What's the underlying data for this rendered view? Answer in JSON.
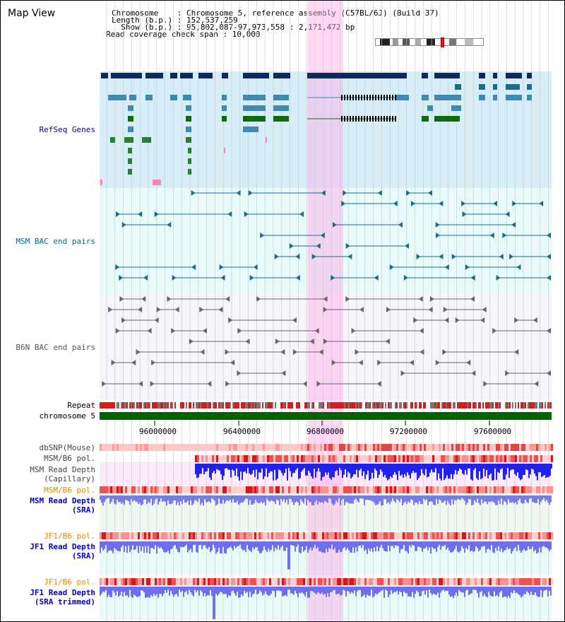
{
  "panel_title": "Map View",
  "header": {
    "chromosome_line": "Chromosome    : Chromosome 5, reference assembly (C57BL/6J) (Build 37)",
    "length_line": "Length (b.p.) : 152,537,259",
    "show_line": "  Show (b.p.) : 95,802,087-97,973,558 : 2,171,472 bp",
    "span_line": "Read coverage check span : 10,000"
  },
  "tracks": {
    "refseq": "RefSeq Genes",
    "msm_bac": "MSM BAC end pairs",
    "b6n_bac": "B6N BAC end pairs",
    "repeat": "Repeat",
    "chromosome": "chromosome 5",
    "dbsnp": "dbSNP(Mouse)",
    "msm_pol1": "MSM/B6 pol.",
    "msm_depth_cap": "MSM Read Depth\n(Capillary)",
    "msm_pol2": "MSM/B6 pol.",
    "msm_depth_sra": "MSM Read Depth\n(SRA)",
    "jf1_pol1": "JF1/B6 pol.",
    "jf1_depth_sra": "JF1 Read Depth\n(SRA)",
    "jf1_pol2": "JF1/B6 pol.",
    "jf1_depth_trim": "JF1 Read Depth\n(SRA trimmed)"
  },
  "axis_ticks": [
    "96000000",
    "96400000",
    "96800000",
    "97200000",
    "97600000"
  ],
  "colors": {
    "refseq_label": "#00008b",
    "msm_label": "#006b8b",
    "b6n_label": "#555555",
    "orange_label": "#e08a00",
    "blue_label": "#0000cc",
    "highlight": "#ffaae6",
    "refseq_bg": "#d7eef8",
    "msm_bg": "#e8fafa",
    "b6n_bg": "#f5f5fa",
    "chrom_green": "#006400"
  }
}
